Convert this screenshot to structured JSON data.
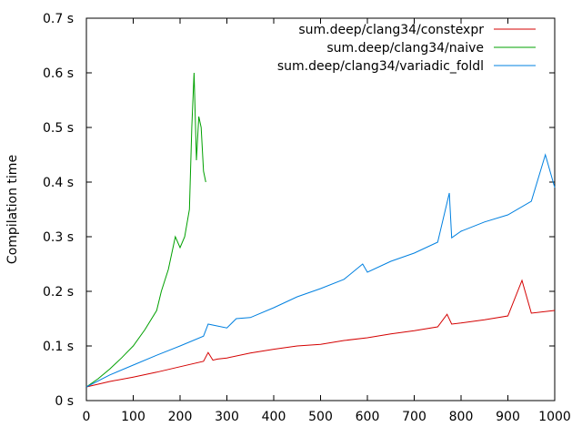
{
  "chart_data": {
    "type": "line",
    "title": "",
    "xlabel": "",
    "ylabel": "Compilation time",
    "xlim": [
      0,
      1000
    ],
    "ylim": [
      0,
      0.7
    ],
    "grid": false,
    "legend_position": "top-right",
    "x_ticks": [
      {
        "value": 0,
        "label": "0"
      },
      {
        "value": 100,
        "label": "100"
      },
      {
        "value": 200,
        "label": "200"
      },
      {
        "value": 300,
        "label": "300"
      },
      {
        "value": 400,
        "label": "400"
      },
      {
        "value": 500,
        "label": "500"
      },
      {
        "value": 600,
        "label": "600"
      },
      {
        "value": 700,
        "label": "700"
      },
      {
        "value": 800,
        "label": "800"
      },
      {
        "value": 900,
        "label": "900"
      },
      {
        "value": 1000,
        "label": "1000"
      }
    ],
    "y_ticks": [
      {
        "value": 0,
        "label": "0 s"
      },
      {
        "value": 0.1,
        "label": "0.1 s"
      },
      {
        "value": 0.2,
        "label": "0.2 s"
      },
      {
        "value": 0.3,
        "label": "0.3 s"
      },
      {
        "value": 0.4,
        "label": "0.4 s"
      },
      {
        "value": 0.5,
        "label": "0.5 s"
      },
      {
        "value": 0.6,
        "label": "0.6 s"
      },
      {
        "value": 0.7,
        "label": "0.7 s"
      }
    ],
    "series": [
      {
        "name": "sum.deep/clang34/constexpr",
        "color": "#d40000",
        "x": [
          0,
          50,
          100,
          150,
          200,
          250,
          260,
          270,
          280,
          300,
          350,
          400,
          450,
          500,
          550,
          600,
          650,
          700,
          750,
          770,
          780,
          800,
          850,
          900,
          930,
          950,
          1000
        ],
        "y": [
          0.025,
          0.035,
          0.043,
          0.052,
          0.062,
          0.072,
          0.088,
          0.074,
          0.076,
          0.078,
          0.087,
          0.094,
          0.1,
          0.103,
          0.11,
          0.115,
          0.122,
          0.128,
          0.135,
          0.158,
          0.14,
          0.142,
          0.148,
          0.155,
          0.22,
          0.16,
          0.165
        ]
      },
      {
        "name": "sum.deep/clang34/naive",
        "color": "#00a000",
        "x": [
          0,
          25,
          50,
          75,
          100,
          125,
          150,
          160,
          175,
          190,
          200,
          210,
          220,
          225,
          230,
          235,
          240,
          245,
          250,
          255
        ],
        "y": [
          0.025,
          0.04,
          0.058,
          0.078,
          0.1,
          0.13,
          0.165,
          0.2,
          0.24,
          0.3,
          0.28,
          0.3,
          0.35,
          0.5,
          0.6,
          0.44,
          0.52,
          0.5,
          0.42,
          0.4
        ]
      },
      {
        "name": "sum.deep/clang34/variadic_foldl",
        "color": "#0080e0",
        "x": [
          0,
          50,
          100,
          150,
          200,
          250,
          260,
          300,
          320,
          350,
          400,
          450,
          500,
          550,
          590,
          600,
          650,
          700,
          750,
          775,
          780,
          800,
          850,
          900,
          950,
          980,
          1000
        ],
        "y": [
          0.025,
          0.047,
          0.065,
          0.083,
          0.1,
          0.118,
          0.14,
          0.133,
          0.15,
          0.152,
          0.17,
          0.19,
          0.205,
          0.222,
          0.25,
          0.235,
          0.255,
          0.27,
          0.29,
          0.38,
          0.298,
          0.31,
          0.327,
          0.34,
          0.365,
          0.45,
          0.39
        ]
      }
    ]
  }
}
